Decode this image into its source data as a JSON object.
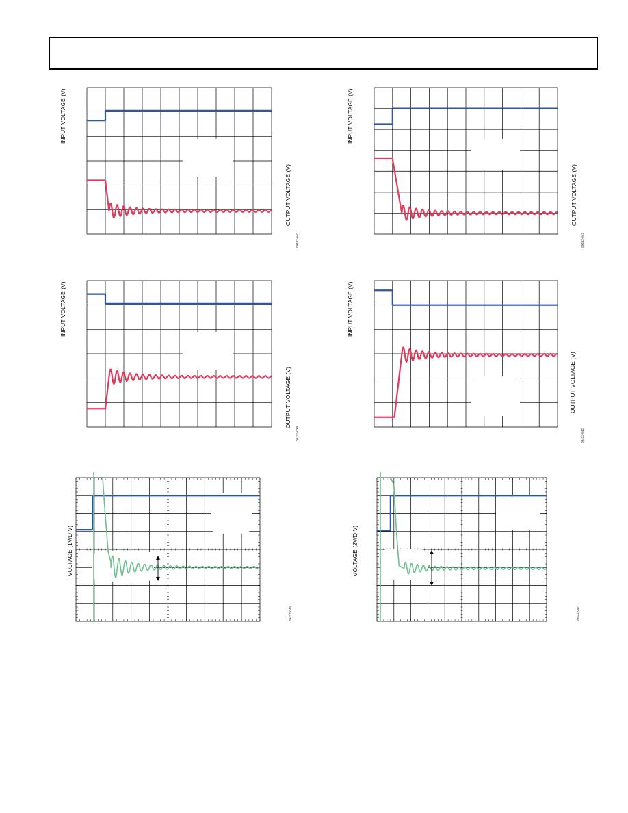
{
  "page": {
    "header": ""
  },
  "colors": {
    "input": "#2f56a0",
    "output": "#e03a5c",
    "scope": "#6cc08f",
    "grid": "#000000"
  },
  "chart_data": [
    {
      "type": "line",
      "id": "fig-1",
      "ylabel_left": "INPUT VOLTAGE (V)",
      "ylabel_right": "OUTPUT VOLTAGE (V)",
      "figure_id": "09432-040",
      "grid": true,
      "divisions": [
        10,
        6
      ],
      "series": [
        {
          "values": [
            [
              0,
              4.65
            ],
            [
              1,
              4.65
            ],
            [
              1,
              5.05
            ],
            [
              10,
              5.05
            ]
          ],
          "color": "input"
        },
        {
          "values": [
            [
              0,
              2.2
            ],
            [
              1,
              2.2
            ],
            [
              1.2,
              0.95
            ],
            [
              10,
              0.95
            ]
          ],
          "color": "output",
          "ring": 0.05
        }
      ]
    },
    {
      "type": "line",
      "id": "fig-2",
      "ylabel_left": "INPUT VOLTAGE (V)",
      "ylabel_right": "OUTPUT VOLTAGE (V)",
      "figure_id": "09432-043",
      "grid": true,
      "divisions": [
        10,
        7
      ],
      "series": [
        {
          "values": [
            [
              0,
              5.25
            ],
            [
              1,
              5.25
            ],
            [
              1,
              6.0
            ],
            [
              10,
              6.0
            ]
          ],
          "color": "input"
        },
        {
          "values": [
            [
              0,
              3.6
            ],
            [
              1,
              3.6
            ],
            [
              1.5,
              1.0
            ],
            [
              10,
              1.0
            ]
          ],
          "color": "output",
          "ring": 0.05
        }
      ]
    },
    {
      "type": "line",
      "id": "fig-3",
      "ylabel_left": "INPUT VOLTAGE (V)",
      "ylabel_right": "OUTPUT VOLTAGE (V)",
      "figure_id": "09432-039",
      "grid": true,
      "divisions": [
        10,
        6
      ],
      "series": [
        {
          "values": [
            [
              0,
              5.45
            ],
            [
              1,
              5.45
            ],
            [
              1,
              5.05
            ],
            [
              10,
              5.05
            ]
          ],
          "color": "input"
        },
        {
          "values": [
            [
              0,
              0.75
            ],
            [
              1,
              0.75
            ],
            [
              1.2,
              2.05
            ],
            [
              10,
              2.05
            ]
          ],
          "color": "output",
          "ring": 0.05
        }
      ]
    },
    {
      "type": "line",
      "id": "fig-4",
      "ylabel_left": "INPUT VOLTAGE (V)",
      "ylabel_right": "OUTPUT VOLTAGE (V)",
      "figure_id": "09432-042",
      "grid": true,
      "divisions": [
        10,
        6
      ],
      "series": [
        {
          "values": [
            [
              0,
              5.6
            ],
            [
              1,
              5.6
            ],
            [
              1,
              5.0
            ],
            [
              10,
              5.0
            ]
          ],
          "color": "input"
        },
        {
          "values": [
            [
              0,
              0.4
            ],
            [
              1.1,
              0.4
            ],
            [
              1.5,
              2.95
            ],
            [
              10,
              2.95
            ]
          ],
          "color": "output",
          "ring": 0.05
        }
      ]
    },
    {
      "type": "line",
      "id": "fig-5",
      "ylabel_left": "VOLTAGE (1V/DIV)",
      "figure_id": "09432-044",
      "grid": true,
      "divisions": [
        10,
        8
      ],
      "series": [
        {
          "values": [
            [
              0,
              5.1
            ],
            [
              0.9,
              5.1
            ],
            [
              0.9,
              7.0
            ],
            [
              10,
              7.0
            ]
          ],
          "color": "input"
        },
        {
          "values": [
            [
              1.45,
              8.0
            ],
            [
              1.55,
              6.5
            ],
            [
              1.75,
              3.9
            ],
            [
              1.9,
              3.3
            ],
            [
              10,
              3.0
            ]
          ],
          "color": "scope",
          "ring": 0.08
        }
      ]
    },
    {
      "type": "line",
      "id": "fig-6",
      "ylabel_left": "VOLTAGE (2V/DIV)",
      "figure_id": "09432-047",
      "grid": true,
      "divisions": [
        10,
        8
      ],
      "series": [
        {
          "values": [
            [
              0,
              5.05
            ],
            [
              0.8,
              5.05
            ],
            [
              0.8,
              7.0
            ],
            [
              10,
              7.0
            ]
          ],
          "color": "input"
        },
        {
          "values": [
            [
              0.8,
              8.0
            ],
            [
              1.0,
              7.6
            ],
            [
              1.15,
              5.0
            ],
            [
              1.3,
              3.1
            ],
            [
              1.6,
              2.95
            ],
            [
              10,
              2.95
            ]
          ],
          "color": "scope",
          "ring": 0.04
        }
      ]
    }
  ]
}
